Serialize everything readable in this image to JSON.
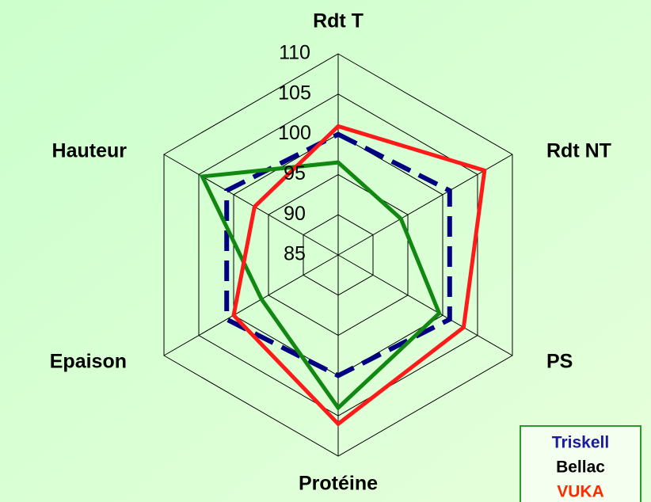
{
  "chart_data": {
    "type": "radar",
    "categories": [
      "Rdt T",
      "Rdt NT",
      "PS",
      "Protéine",
      "Epaison",
      "Hauteur"
    ],
    "ylim": [
      85,
      110
    ],
    "yticks": [
      85,
      90,
      95,
      100,
      105,
      110
    ],
    "grid": true,
    "series": [
      {
        "name": "Triskell",
        "color": "#000080",
        "legend_color": "#1a1a9a",
        "dash": true,
        "values": [
          100,
          101,
          101,
          100,
          101,
          101
        ]
      },
      {
        "name": "Bellac",
        "color": "#118811",
        "legend_color": "#000000",
        "dash": false,
        "values": [
          96.5,
          94,
          99.5,
          104,
          96,
          104.5
        ]
      },
      {
        "name": "VUKA",
        "color": "#ff1a1a",
        "legend_color": "#ff2a00",
        "dash": false,
        "values": [
          101,
          106,
          103,
          106,
          100,
          97
        ]
      }
    ]
  }
}
